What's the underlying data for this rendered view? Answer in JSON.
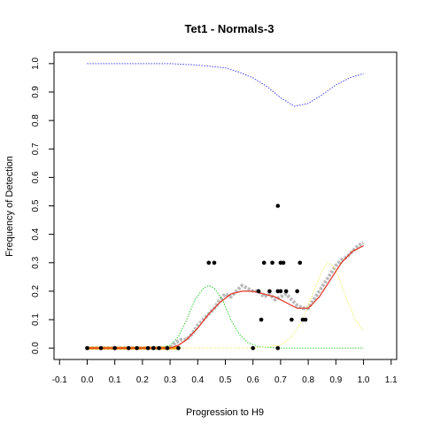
{
  "chart_data": {
    "type": "scatter",
    "title": "Tet1 - Normals-3",
    "xlabel": "Progression to H9",
    "ylabel": "Frequency of Detection",
    "xlim": [
      -0.12,
      1.12
    ],
    "ylim": [
      -0.04,
      1.04
    ],
    "x_ticks": [
      "-0.1",
      "0.0",
      "0.1",
      "0.2",
      "0.3",
      "0.4",
      "0.5",
      "0.6",
      "0.7",
      "0.8",
      "0.9",
      "1.0",
      "1.1"
    ],
    "y_ticks": [
      "0.0",
      "0.1",
      "0.2",
      "0.3",
      "0.4",
      "0.5",
      "0.6",
      "0.7",
      "0.8",
      "0.9",
      "1.0"
    ],
    "grid": false,
    "legend": "none",
    "colors": {
      "points": "#000000",
      "rolling": "#bbbbbb",
      "fit": "#e03020",
      "upper_curve": "#4444ee",
      "green_density": "#33cc33",
      "yellow_density": "#eeee66",
      "orange_base": "#f0a000"
    },
    "series": [
      {
        "type": "points",
        "x": [
          0.0,
          0.05,
          0.1,
          0.15,
          0.18,
          0.22,
          0.24,
          0.26,
          0.29,
          0.33,
          0.44,
          0.46,
          0.6,
          0.62,
          0.63,
          0.64,
          0.66,
          0.67,
          0.69,
          0.69,
          0.7,
          0.7,
          0.71,
          0.72,
          0.74,
          0.76,
          0.77,
          0.78,
          0.79,
          0.69
        ],
        "y": [
          0.0,
          0.0,
          0.0,
          0.0,
          0.0,
          0.0,
          0.0,
          0.0,
          0.0,
          0.0,
          0.3,
          0.3,
          0.0,
          0.2,
          0.1,
          0.3,
          0.2,
          0.3,
          0.2,
          0.5,
          0.2,
          0.3,
          0.3,
          0.2,
          0.1,
          0.2,
          0.3,
          0.1,
          0.1,
          0.0
        ]
      },
      {
        "type": "rolling",
        "x": [
          0.0,
          0.1,
          0.2,
          0.3,
          0.32,
          0.34,
          0.36,
          0.38,
          0.4,
          0.42,
          0.44,
          0.46,
          0.48,
          0.5,
          0.52,
          0.54,
          0.56,
          0.58,
          0.6,
          0.62,
          0.64,
          0.66,
          0.68,
          0.7,
          0.72,
          0.74,
          0.76,
          0.78,
          0.8,
          0.82,
          0.84,
          0.86,
          0.88,
          0.9,
          0.92,
          0.94,
          0.96,
          0.98,
          1.0
        ],
        "y": [
          0.0,
          0.0,
          0.0,
          0.0,
          0.02,
          0.03,
          0.03,
          0.05,
          0.08,
          0.1,
          0.12,
          0.14,
          0.17,
          0.19,
          0.18,
          0.2,
          0.22,
          0.21,
          0.2,
          0.2,
          0.18,
          0.19,
          0.17,
          0.18,
          0.19,
          0.17,
          0.15,
          0.14,
          0.14,
          0.17,
          0.2,
          0.23,
          0.26,
          0.29,
          0.31,
          0.32,
          0.34,
          0.36,
          0.37
        ]
      },
      {
        "type": "fit",
        "x": [
          0.0,
          0.1,
          0.2,
          0.25,
          0.3,
          0.33,
          0.36,
          0.4,
          0.44,
          0.48,
          0.52,
          0.56,
          0.6,
          0.64,
          0.68,
          0.72,
          0.76,
          0.8,
          0.84,
          0.88,
          0.92,
          0.96,
          1.0
        ],
        "y": [
          0.0,
          0.0,
          0.0,
          0.0,
          0.0,
          0.01,
          0.03,
          0.07,
          0.12,
          0.16,
          0.19,
          0.2,
          0.2,
          0.19,
          0.18,
          0.16,
          0.14,
          0.14,
          0.18,
          0.24,
          0.3,
          0.34,
          0.36
        ]
      },
      {
        "type": "upper_curve",
        "x": [
          0.0,
          0.1,
          0.2,
          0.3,
          0.4,
          0.45,
          0.5,
          0.55,
          0.6,
          0.65,
          0.7,
          0.75,
          0.8,
          0.85,
          0.9,
          0.95,
          1.0
        ],
        "y": [
          1.0,
          1.0,
          1.0,
          1.0,
          0.995,
          0.99,
          0.985,
          0.97,
          0.95,
          0.92,
          0.88,
          0.85,
          0.86,
          0.89,
          0.925,
          0.95,
          0.965
        ]
      },
      {
        "type": "green_density",
        "x": [
          0.0,
          0.25,
          0.3,
          0.33,
          0.36,
          0.39,
          0.42,
          0.44,
          0.46,
          0.49,
          0.52,
          0.55,
          0.58,
          0.62,
          0.7,
          1.0
        ],
        "y": [
          0.0,
          0.0,
          0.01,
          0.04,
          0.1,
          0.17,
          0.21,
          0.22,
          0.21,
          0.17,
          0.1,
          0.05,
          0.02,
          0.005,
          0.0,
          0.0
        ]
      },
      {
        "type": "yellow_density",
        "x": [
          0.0,
          0.6,
          0.7,
          0.74,
          0.78,
          0.82,
          0.85,
          0.87,
          0.89,
          0.91,
          0.94,
          0.97,
          1.0
        ],
        "y": [
          0.0,
          0.0,
          0.01,
          0.04,
          0.1,
          0.2,
          0.27,
          0.3,
          0.29,
          0.25,
          0.17,
          0.1,
          0.06
        ]
      },
      {
        "type": "orange_base",
        "x": [
          0.0,
          0.33
        ],
        "y": [
          0.0,
          0.0
        ]
      }
    ]
  }
}
